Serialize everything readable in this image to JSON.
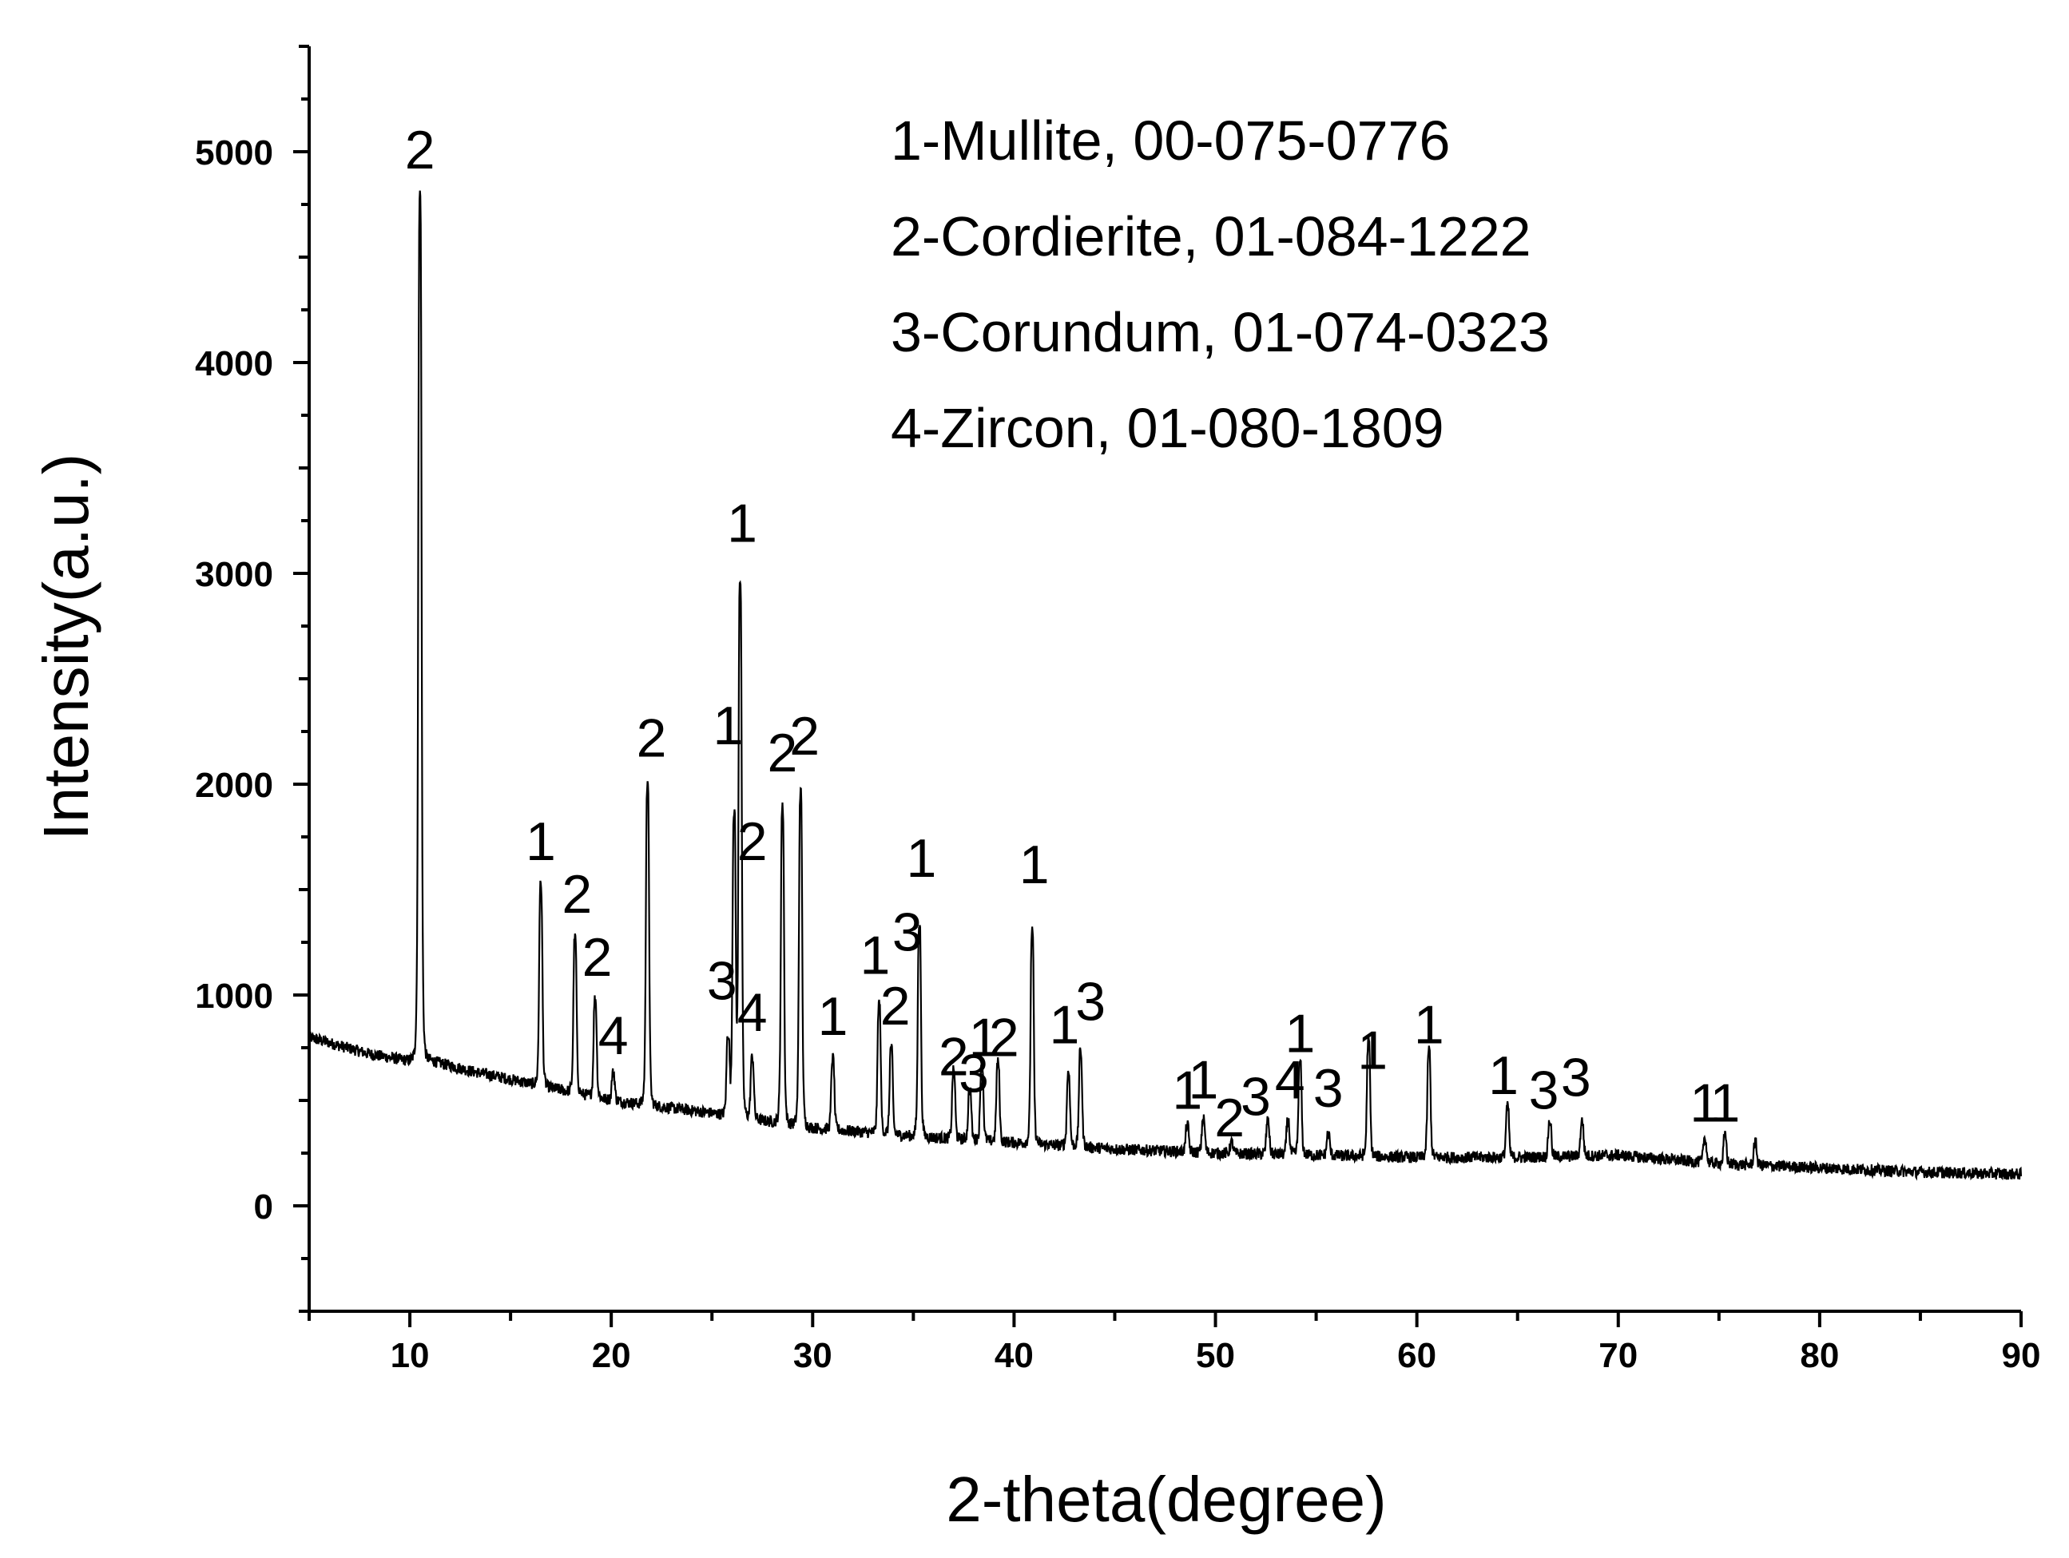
{
  "chart_data": {
    "type": "line",
    "xlabel": "2-theta(degree)",
    "ylabel": "Intensity(a.u.)",
    "xlim": [
      5,
      90
    ],
    "ylim": [
      -500,
      5500
    ],
    "xticks": [
      10,
      20,
      30,
      40,
      50,
      60,
      70,
      80,
      90
    ],
    "yticks": [
      0,
      1000,
      2000,
      3000,
      4000,
      5000
    ],
    "grid": false,
    "legend": [
      "1-Mullite, 00-075-0776",
      "2-Cordierite, 01-084-1222",
      "3-Corundum, 01-074-0323",
      "4-Zircon,  01-080-1809"
    ],
    "legend_position": "top-right",
    "series": [
      {
        "background": [
          [
            5,
            800
          ],
          [
            8,
            720
          ],
          [
            9.8,
            690
          ],
          [
            11,
            690
          ],
          [
            13,
            640
          ],
          [
            15,
            600
          ],
          [
            20,
            500
          ],
          [
            25,
            440
          ],
          [
            30,
            370
          ],
          [
            35,
            330
          ],
          [
            40,
            300
          ],
          [
            45,
            270
          ],
          [
            50,
            250
          ],
          [
            55,
            240
          ],
          [
            60,
            230
          ],
          [
            65,
            230
          ],
          [
            70,
            240
          ],
          [
            75,
            200
          ],
          [
            80,
            180
          ],
          [
            85,
            160
          ],
          [
            90,
            150
          ]
        ],
        "peaks": [
          [
            10.5,
            4800
          ],
          [
            16.5,
            1520
          ],
          [
            18.2,
            1270
          ],
          [
            19.2,
            980
          ],
          [
            20.1,
            630
          ],
          [
            21.8,
            1990
          ],
          [
            25.8,
            800
          ],
          [
            26.1,
            1850
          ],
          [
            26.4,
            2960
          ],
          [
            27.0,
            700
          ],
          [
            28.5,
            1890
          ],
          [
            29.4,
            1960
          ],
          [
            31.0,
            700
          ],
          [
            33.3,
            960
          ],
          [
            33.9,
            750
          ],
          [
            35.3,
            1340
          ],
          [
            37.0,
            640
          ],
          [
            37.8,
            550
          ],
          [
            38.4,
            680
          ],
          [
            39.2,
            680
          ],
          [
            40.9,
            1300
          ],
          [
            42.7,
            630
          ],
          [
            43.3,
            730
          ],
          [
            48.6,
            380
          ],
          [
            49.4,
            410
          ],
          [
            50.8,
            300
          ],
          [
            52.6,
            400
          ],
          [
            53.6,
            400
          ],
          [
            54.2,
            680
          ],
          [
            55.6,
            340
          ],
          [
            57.6,
            780
          ],
          [
            60.6,
            740
          ],
          [
            64.5,
            470
          ],
          [
            66.6,
            400
          ],
          [
            68.2,
            400
          ],
          [
            74.3,
            320
          ],
          [
            75.3,
            330
          ],
          [
            76.8,
            300
          ]
        ]
      }
    ],
    "annotations": [
      {
        "text": "2",
        "x": 10.5,
        "y": 4920
      },
      {
        "text": "1",
        "x": 16.5,
        "y": 1640
      },
      {
        "text": "2",
        "x": 18.3,
        "y": 1390
      },
      {
        "text": "2",
        "x": 19.3,
        "y": 1090
      },
      {
        "text": "4",
        "x": 20.1,
        "y": 720
      },
      {
        "text": "2",
        "x": 22.0,
        "y": 2130
      },
      {
        "text": "3",
        "x": 25.5,
        "y": 980
      },
      {
        "text": "1",
        "x": 25.8,
        "y": 2190
      },
      {
        "text": "4",
        "x": 27.0,
        "y": 830
      },
      {
        "text": "2",
        "x": 27.0,
        "y": 1640
      },
      {
        "text": "1",
        "x": 26.5,
        "y": 3150
      },
      {
        "text": "2",
        "x": 28.5,
        "y": 2060
      },
      {
        "text": "2",
        "x": 29.6,
        "y": 2140
      },
      {
        "text": "1",
        "x": 31.0,
        "y": 810
      },
      {
        "text": "1",
        "x": 33.1,
        "y": 1100
      },
      {
        "text": "3",
        "x": 34.7,
        "y": 1210
      },
      {
        "text": "2",
        "x": 34.1,
        "y": 860
      },
      {
        "text": "1",
        "x": 35.4,
        "y": 1560
      },
      {
        "text": "2",
        "x": 37.0,
        "y": 620
      },
      {
        "text": "3",
        "x": 38.0,
        "y": 540
      },
      {
        "text": "1",
        "x": 38.5,
        "y": 710
      },
      {
        "text": "2",
        "x": 39.5,
        "y": 710
      },
      {
        "text": "1",
        "x": 41.0,
        "y": 1530
      },
      {
        "text": "1",
        "x": 42.5,
        "y": 770
      },
      {
        "text": "3",
        "x": 43.8,
        "y": 880
      },
      {
        "text": "1",
        "x": 48.6,
        "y": 460
      },
      {
        "text": "1",
        "x": 49.4,
        "y": 510
      },
      {
        "text": "2",
        "x": 50.7,
        "y": 330
      },
      {
        "text": "3",
        "x": 52.0,
        "y": 430
      },
      {
        "text": "4",
        "x": 53.7,
        "y": 510
      },
      {
        "text": "1",
        "x": 54.2,
        "y": 730
      },
      {
        "text": "3",
        "x": 55.6,
        "y": 470
      },
      {
        "text": "1",
        "x": 57.8,
        "y": 650
      },
      {
        "text": "1",
        "x": 60.6,
        "y": 770
      },
      {
        "text": "1",
        "x": 64.3,
        "y": 530
      },
      {
        "text": "3",
        "x": 66.3,
        "y": 460
      },
      {
        "text": "3",
        "x": 67.9,
        "y": 520
      },
      {
        "text": "1",
        "x": 74.3,
        "y": 400
      },
      {
        "text": "1",
        "x": 75.3,
        "y": 400
      }
    ]
  }
}
